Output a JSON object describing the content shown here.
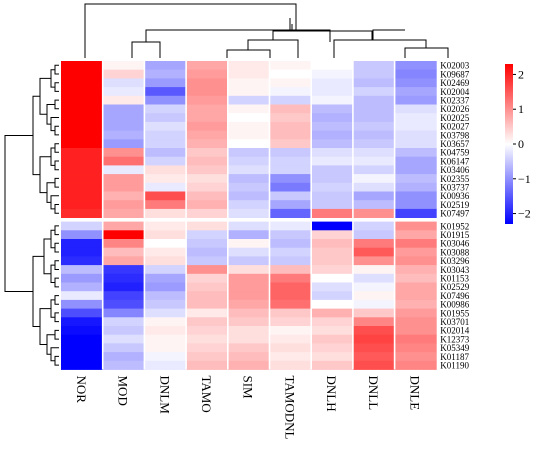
{
  "chart_data": {
    "type": "heatmap",
    "title": "",
    "xlabel": "",
    "ylabel": "",
    "columns": [
      "NOR",
      "MOD",
      "DNLM",
      "TAMO",
      "SIM",
      "TAMODNL",
      "DNLH",
      "DNLL",
      "DNLE"
    ],
    "rows": [
      "K02003",
      "K09687",
      "K02469",
      "K02004",
      "K02337",
      "K02026",
      "K02025",
      "K02027",
      "K03798",
      "K03657",
      "K04759",
      "K06147",
      "K03406",
      "K02355",
      "K03737",
      "K00936",
      "K02519",
      "K07497",
      "K01952",
      "K01915",
      "K03046",
      "K03088",
      "K03296",
      "K03043",
      "K01153",
      "K02529",
      "K07496",
      "K00986",
      "K01955",
      "K03701",
      "K02014",
      "K12373",
      "K05349",
      "K01187",
      "K01190"
    ],
    "row_group_sizes": [
      18,
      17
    ],
    "values": [
      [
        2.3,
        0.1,
        -0.8,
        0.8,
        0.2,
        0.1,
        0.0,
        -0.5,
        -1.0
      ],
      [
        2.3,
        0.4,
        -0.7,
        0.9,
        0.2,
        0.0,
        -0.1,
        -0.5,
        -1.1
      ],
      [
        2.3,
        -0.3,
        -0.9,
        1.0,
        0.1,
        0.1,
        -0.2,
        -0.6,
        -1.0
      ],
      [
        2.3,
        -0.2,
        -1.5,
        1.0,
        0.1,
        -0.1,
        -0.2,
        -0.4,
        -0.8
      ],
      [
        2.3,
        0.2,
        -1.0,
        0.9,
        -0.4,
        -0.4,
        -0.1,
        -0.6,
        -0.9
      ],
      [
        2.3,
        -0.8,
        -0.4,
        0.8,
        0.1,
        0.6,
        -0.6,
        -0.6,
        -0.3
      ],
      [
        2.3,
        -0.8,
        -0.5,
        0.8,
        0.0,
        0.5,
        -0.7,
        -0.6,
        -0.2
      ],
      [
        2.3,
        -0.8,
        -0.3,
        0.9,
        0.1,
        0.6,
        -0.6,
        -0.5,
        -0.2
      ],
      [
        2.3,
        -0.7,
        -0.4,
        0.8,
        0.1,
        0.6,
        -0.7,
        -0.6,
        -0.3
      ],
      [
        2.3,
        -0.9,
        -0.4,
        0.7,
        0.0,
        0.5,
        -0.6,
        -0.5,
        -0.3
      ],
      [
        2.0,
        1.0,
        -0.6,
        0.5,
        -0.5,
        -0.5,
        -0.3,
        -0.3,
        -0.6
      ],
      [
        2.0,
        1.3,
        -0.4,
        0.6,
        -0.4,
        -0.4,
        -0.2,
        -0.2,
        -0.8
      ],
      [
        2.0,
        -0.2,
        0.3,
        0.5,
        -0.3,
        -0.4,
        -0.5,
        -0.4,
        -0.8
      ],
      [
        2.0,
        0.9,
        0.2,
        0.3,
        -0.6,
        -1.0,
        -0.5,
        -0.1,
        -0.6
      ],
      [
        2.0,
        0.9,
        -0.2,
        0.4,
        -0.5,
        -1.2,
        -0.4,
        -0.3,
        -0.7
      ],
      [
        2.0,
        0.7,
        1.6,
        0.6,
        -0.6,
        -0.5,
        -0.5,
        -0.8,
        -1.0
      ],
      [
        2.0,
        0.9,
        1.2,
        0.7,
        -0.4,
        -0.8,
        -0.5,
        -0.6,
        -1.0
      ],
      [
        1.9,
        0.8,
        0.3,
        0.4,
        -0.3,
        -1.4,
        1.2,
        1.0,
        -1.7
      ],
      [
        -0.4,
        0.8,
        0.2,
        0.3,
        -0.3,
        -0.2,
        -2.3,
        -0.4,
        1.0
      ],
      [
        -1.0,
        2.3,
        0.3,
        -0.4,
        -0.7,
        -0.5,
        0.4,
        -0.5,
        0.8
      ],
      [
        -2.0,
        1.1,
        0.0,
        -0.5,
        0.1,
        -0.6,
        0.6,
        1.2,
        1.2
      ],
      [
        -2.0,
        0.6,
        0.2,
        -0.6,
        -0.3,
        -0.4,
        0.5,
        1.5,
        0.9
      ],
      [
        -1.9,
        0.8,
        0.3,
        -0.5,
        -0.5,
        -0.5,
        0.5,
        1.0,
        1.0
      ],
      [
        -0.6,
        -1.8,
        -0.4,
        1.0,
        0.3,
        0.6,
        0.4,
        0.1,
        0.7
      ],
      [
        -0.9,
        -1.9,
        -0.8,
        0.4,
        0.9,
        1.2,
        0.0,
        -0.3,
        0.6
      ],
      [
        -0.7,
        -2.0,
        -0.9,
        0.5,
        0.9,
        1.4,
        -0.3,
        -0.1,
        0.8
      ],
      [
        -0.2,
        -1.7,
        -0.6,
        0.6,
        0.9,
        1.4,
        -0.4,
        0.1,
        0.8
      ],
      [
        -1.0,
        -1.6,
        -0.5,
        0.6,
        0.8,
        1.3,
        0.0,
        -0.1,
        0.7
      ],
      [
        -1.6,
        -1.1,
        -0.3,
        0.2,
        0.6,
        0.5,
        0.7,
        0.5,
        0.9
      ],
      [
        -2.1,
        -0.4,
        0.1,
        0.5,
        0.5,
        0.4,
        0.4,
        1.1,
        1.0
      ],
      [
        -2.2,
        -0.5,
        0.2,
        0.4,
        0.3,
        0.1,
        0.3,
        1.6,
        1.0
      ],
      [
        -2.3,
        -0.3,
        0.1,
        0.3,
        0.3,
        0.2,
        0.5,
        1.7,
        1.2
      ],
      [
        -2.3,
        -0.5,
        0.1,
        0.4,
        0.5,
        0.3,
        0.4,
        1.6,
        1.1
      ],
      [
        -2.3,
        -0.7,
        -0.1,
        0.5,
        0.6,
        0.2,
        0.3,
        1.5,
        1.0
      ],
      [
        -2.3,
        -0.6,
        -0.2,
        0.6,
        0.7,
        0.3,
        0.5,
        1.6,
        1.1
      ]
    ],
    "color_scale": {
      "min": -2.3,
      "max": 2.3,
      "low": "#0000ff",
      "mid": "#ffffff",
      "high": "#ff0000"
    },
    "colorbar_ticks": [
      2,
      1,
      0,
      -1,
      -2
    ]
  }
}
